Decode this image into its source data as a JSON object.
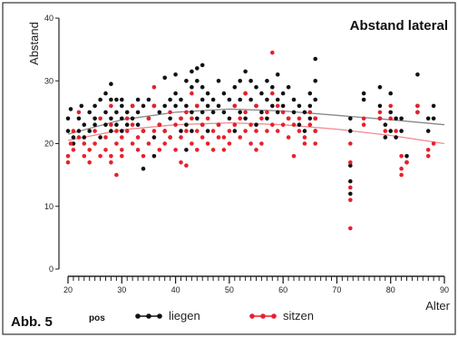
{
  "figure_label": "Abb. 5",
  "legend_key": "pos",
  "chart_data": {
    "type": "scatter",
    "title": "Abstand lateral",
    "xlabel": "Alter",
    "ylabel": "Abstand",
    "xlim": [
      20,
      90
    ],
    "ylim": [
      0,
      40
    ],
    "x_ticks": [
      20,
      30,
      40,
      50,
      60,
      70,
      80,
      90
    ],
    "y_ticks": [
      0,
      10,
      20,
      30,
      40
    ],
    "grid": false,
    "legend_position": "bottom",
    "series": [
      {
        "name": "liegen",
        "color": "#111111",
        "trend": [
          [
            20,
            21.5
          ],
          [
            30,
            23.8
          ],
          [
            40,
            25.0
          ],
          [
            50,
            25.5
          ],
          [
            60,
            25.2
          ],
          [
            70,
            24.5
          ],
          [
            80,
            23.8
          ],
          [
            90,
            23.0
          ]
        ],
        "points": [
          [
            20,
            22
          ],
          [
            20,
            24
          ],
          [
            20.5,
            25.5
          ],
          [
            21,
            21
          ],
          [
            21,
            20
          ],
          [
            22,
            24
          ],
          [
            22,
            22
          ],
          [
            22.5,
            26
          ],
          [
            23,
            23
          ],
          [
            23,
            21
          ],
          [
            24,
            25
          ],
          [
            24,
            22
          ],
          [
            25,
            24
          ],
          [
            25,
            26
          ],
          [
            25,
            23
          ],
          [
            26,
            21
          ],
          [
            26,
            27
          ],
          [
            27,
            28
          ],
          [
            27,
            25
          ],
          [
            27,
            23
          ],
          [
            28,
            29.5
          ],
          [
            28,
            27
          ],
          [
            28,
            24
          ],
          [
            28,
            22
          ],
          [
            29,
            25
          ],
          [
            29,
            27
          ],
          [
            29,
            23
          ],
          [
            30,
            27
          ],
          [
            30,
            24
          ],
          [
            30,
            22
          ],
          [
            30,
            26
          ],
          [
            31,
            25
          ],
          [
            31,
            23
          ],
          [
            32,
            26
          ],
          [
            32,
            24
          ],
          [
            33,
            27
          ],
          [
            33,
            25
          ],
          [
            33,
            23
          ],
          [
            34,
            26
          ],
          [
            34,
            22
          ],
          [
            34,
            16
          ],
          [
            35,
            27
          ],
          [
            35,
            24
          ],
          [
            36,
            26
          ],
          [
            36,
            21
          ],
          [
            36,
            18
          ],
          [
            37,
            25
          ],
          [
            37,
            23
          ],
          [
            38,
            30.5
          ],
          [
            38,
            26
          ],
          [
            38,
            22
          ],
          [
            39,
            27
          ],
          [
            39,
            24
          ],
          [
            39,
            21
          ],
          [
            40,
            31
          ],
          [
            40,
            28
          ],
          [
            40,
            26
          ],
          [
            41,
            27
          ],
          [
            41,
            24
          ],
          [
            41,
            22
          ],
          [
            42,
            30
          ],
          [
            42,
            26
          ],
          [
            42,
            23
          ],
          [
            42,
            19
          ],
          [
            43,
            31.5
          ],
          [
            43,
            29
          ],
          [
            43,
            25
          ],
          [
            43,
            22
          ],
          [
            44,
            32
          ],
          [
            44,
            30
          ],
          [
            44,
            26
          ],
          [
            44,
            24
          ],
          [
            45,
            32.5
          ],
          [
            45,
            29
          ],
          [
            45,
            27
          ],
          [
            45,
            25
          ],
          [
            45,
            23
          ],
          [
            46,
            28
          ],
          [
            46,
            26
          ],
          [
            46,
            22
          ],
          [
            47,
            27
          ],
          [
            47,
            25
          ],
          [
            48,
            30
          ],
          [
            48,
            26
          ],
          [
            48,
            23
          ],
          [
            49,
            28
          ],
          [
            49,
            25
          ],
          [
            50,
            27
          ],
          [
            50,
            24
          ],
          [
            51,
            29
          ],
          [
            51,
            26
          ],
          [
            51,
            22
          ],
          [
            52,
            30
          ],
          [
            52,
            27
          ],
          [
            52,
            25
          ],
          [
            53,
            31.5
          ],
          [
            53,
            28
          ],
          [
            53,
            24
          ],
          [
            54,
            30
          ],
          [
            54,
            27
          ],
          [
            55,
            29
          ],
          [
            55,
            26
          ],
          [
            55,
            23
          ],
          [
            56,
            28
          ],
          [
            56,
            25
          ],
          [
            57,
            30
          ],
          [
            57,
            27
          ],
          [
            57,
            24
          ],
          [
            58,
            29
          ],
          [
            58,
            26
          ],
          [
            59,
            31
          ],
          [
            59,
            27
          ],
          [
            59,
            25
          ],
          [
            60,
            28
          ],
          [
            60,
            26
          ],
          [
            61,
            29
          ],
          [
            61,
            24
          ],
          [
            62,
            27
          ],
          [
            62,
            25
          ],
          [
            63,
            26
          ],
          [
            63,
            23
          ],
          [
            64,
            25
          ],
          [
            64,
            22
          ],
          [
            65,
            28
          ],
          [
            65,
            26
          ],
          [
            65,
            24
          ],
          [
            66,
            30
          ],
          [
            66,
            27
          ],
          [
            66,
            33.5
          ],
          [
            66,
            24
          ],
          [
            66,
            22
          ],
          [
            72.5,
            24
          ],
          [
            72.5,
            22
          ],
          [
            72.5,
            16.5
          ],
          [
            72.5,
            14
          ],
          [
            72.5,
            12
          ],
          [
            75,
            28
          ],
          [
            75,
            27
          ],
          [
            78,
            29
          ],
          [
            78,
            26
          ],
          [
            78,
            24
          ],
          [
            79,
            23
          ],
          [
            79,
            21
          ],
          [
            80,
            28
          ],
          [
            80,
            25
          ],
          [
            80,
            22
          ],
          [
            81,
            24
          ],
          [
            81,
            21
          ],
          [
            82,
            24
          ],
          [
            82,
            22
          ],
          [
            83,
            18
          ],
          [
            83,
            17
          ],
          [
            85,
            31
          ],
          [
            85,
            26
          ],
          [
            85,
            25
          ],
          [
            87,
            24
          ],
          [
            87,
            22
          ],
          [
            88,
            26
          ],
          [
            88,
            24
          ]
        ]
      },
      {
        "name": "sitzen",
        "color": "#e8202a",
        "trend": [
          [
            20,
            20.5
          ],
          [
            30,
            22.2
          ],
          [
            40,
            23.0
          ],
          [
            50,
            23.3
          ],
          [
            60,
            23.0
          ],
          [
            70,
            22.3
          ],
          [
            80,
            21.3
          ],
          [
            90,
            20.0
          ]
        ],
        "points": [
          [
            20,
            18
          ],
          [
            20,
            17
          ],
          [
            20.5,
            20
          ],
          [
            21,
            22
          ],
          [
            21,
            19
          ],
          [
            22,
            25
          ],
          [
            22,
            21
          ],
          [
            23,
            18
          ],
          [
            23,
            20
          ],
          [
            24,
            17
          ],
          [
            24,
            19
          ],
          [
            25,
            22
          ],
          [
            25,
            20
          ],
          [
            26,
            24
          ],
          [
            26,
            18
          ],
          [
            27,
            21
          ],
          [
            27,
            19
          ],
          [
            28,
            26
          ],
          [
            28,
            23
          ],
          [
            28,
            18
          ],
          [
            28,
            17
          ],
          [
            29,
            15
          ],
          [
            29,
            20
          ],
          [
            29,
            22
          ],
          [
            30,
            21
          ],
          [
            30,
            19
          ],
          [
            30,
            18
          ],
          [
            31,
            24
          ],
          [
            31,
            22
          ],
          [
            32,
            26
          ],
          [
            32,
            23
          ],
          [
            32,
            20
          ],
          [
            33,
            21
          ],
          [
            33,
            19
          ],
          [
            34,
            22
          ],
          [
            34,
            18
          ],
          [
            35,
            24
          ],
          [
            35,
            20
          ],
          [
            36,
            29
          ],
          [
            36,
            26
          ],
          [
            36,
            22
          ],
          [
            37,
            23
          ],
          [
            37,
            19
          ],
          [
            38,
            22
          ],
          [
            38,
            20
          ],
          [
            39,
            25
          ],
          [
            39,
            21
          ],
          [
            40,
            23
          ],
          [
            40,
            19
          ],
          [
            41,
            24
          ],
          [
            41,
            21
          ],
          [
            41,
            17
          ],
          [
            42,
            25
          ],
          [
            42,
            22
          ],
          [
            42,
            16.5
          ],
          [
            43,
            28
          ],
          [
            43,
            24
          ],
          [
            43,
            20
          ],
          [
            44,
            26
          ],
          [
            44,
            22
          ],
          [
            44,
            19
          ],
          [
            45,
            23
          ],
          [
            45,
            21
          ],
          [
            46,
            24
          ],
          [
            46,
            20
          ],
          [
            47,
            22
          ],
          [
            47,
            19
          ],
          [
            48,
            23
          ],
          [
            48,
            21
          ],
          [
            49,
            21
          ],
          [
            49,
            19
          ],
          [
            50,
            22
          ],
          [
            50,
            20
          ],
          [
            51,
            26
          ],
          [
            51,
            23
          ],
          [
            52,
            24
          ],
          [
            52,
            21
          ],
          [
            53,
            28
          ],
          [
            53,
            25
          ],
          [
            53,
            22
          ],
          [
            54,
            23
          ],
          [
            54,
            20
          ],
          [
            55,
            26
          ],
          [
            55,
            22
          ],
          [
            55,
            19
          ],
          [
            56,
            24
          ],
          [
            56,
            20
          ],
          [
            57,
            25
          ],
          [
            57,
            22
          ],
          [
            58,
            34.5
          ],
          [
            58,
            28
          ],
          [
            58,
            23
          ],
          [
            59,
            26
          ],
          [
            59,
            22
          ],
          [
            60,
            25
          ],
          [
            60,
            23
          ],
          [
            61,
            24
          ],
          [
            61,
            21
          ],
          [
            62,
            23
          ],
          [
            62,
            18
          ],
          [
            63,
            24
          ],
          [
            63,
            22
          ],
          [
            64,
            21
          ],
          [
            64,
            20
          ],
          [
            65,
            25
          ],
          [
            65,
            23
          ],
          [
            66,
            24
          ],
          [
            66,
            22
          ],
          [
            66,
            20
          ],
          [
            72.5,
            20
          ],
          [
            72.5,
            17
          ],
          [
            72.5,
            13
          ],
          [
            72.5,
            11
          ],
          [
            72.5,
            6.5
          ],
          [
            75,
            24
          ],
          [
            75,
            23
          ],
          [
            78,
            25
          ],
          [
            78,
            24
          ],
          [
            79,
            22
          ],
          [
            80,
            26
          ],
          [
            80,
            24
          ],
          [
            81,
            22
          ],
          [
            82,
            18
          ],
          [
            82,
            16
          ],
          [
            82,
            15
          ],
          [
            83,
            17
          ],
          [
            85,
            26
          ],
          [
            85,
            25
          ],
          [
            87,
            19
          ],
          [
            87,
            18
          ],
          [
            88,
            20
          ]
        ]
      }
    ]
  }
}
